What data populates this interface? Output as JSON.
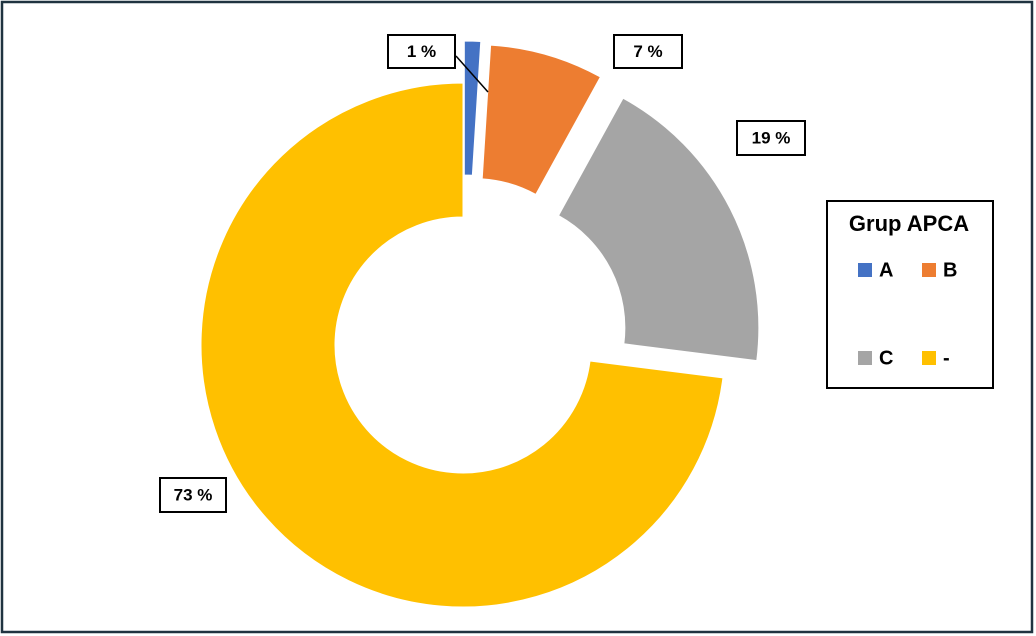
{
  "chart_data": {
    "type": "donut",
    "legend_title": "Grup APCA",
    "categories": [
      "A",
      "B",
      "C",
      "-"
    ],
    "values": [
      1,
      7,
      19,
      73
    ],
    "value_labels": [
      "1 %",
      "7 %",
      "19 %",
      "73 %"
    ],
    "colors": [
      "#4472c4",
      "#ed7d31",
      "#a5a5a5",
      "#ffc000"
    ],
    "legend": "right"
  }
}
